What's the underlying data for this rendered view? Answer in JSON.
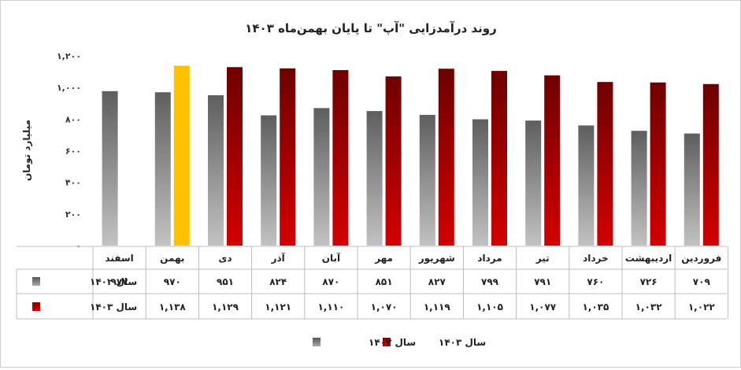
{
  "chart_data": {
    "type": "bar",
    "title": "روند درآمدزایی \"آپ\" تا پایان بهمن‌ماه ۱۴۰۳",
    "ylabel": "میلیارد تومان",
    "xlabel": "",
    "ylim": [
      0,
      1200
    ],
    "yticks": [
      0,
      200,
      400,
      600,
      800,
      1000,
      1200
    ],
    "ytick_labels": [
      "۰",
      "۲۰۰",
      "۴۰۰",
      "۶۰۰",
      "۸۰۰",
      "۱,۰۰۰",
      "۱,۲۰۰"
    ],
    "grid": false,
    "legend_position": "bottom",
    "categories": [
      "فروردین",
      "اردیبهشت",
      "خرداد",
      "تیر",
      "مرداد",
      "شهریور",
      "مهر",
      "آبان",
      "آذر",
      "دی",
      "بهمن",
      "اسفند"
    ],
    "series": [
      {
        "name": "سال ۱۴۰۲",
        "color": "#7a7a7a",
        "values": [
          709,
          726,
          760,
          791,
          799,
          827,
          851,
          870,
          824,
          951,
          970,
          977
        ],
        "labels": [
          "۷۰۹",
          "۷۲۶",
          "۷۶۰",
          "۷۹۱",
          "۷۹۹",
          "۸۲۷",
          "۸۵۱",
          "۸۷۰",
          "۸۲۴",
          "۹۵۱",
          "۹۷۰",
          "۹۷۷"
        ]
      },
      {
        "name": "سال ۱۴۰۳",
        "color": "#b00000",
        "highlight_index": 10,
        "highlight_color": "#ffc000",
        "values": [
          1022,
          1032,
          1035,
          1077,
          1105,
          1119,
          1070,
          1110,
          1121,
          1129,
          1138,
          null
        ],
        "labels": [
          "۱,۰۲۲",
          "۱,۰۳۲",
          "۱,۰۳۵",
          "۱,۰۷۷",
          "۱,۱۰۵",
          "۱,۱۱۹",
          "۱,۰۷۰",
          "۱,۱۱۰",
          "۱,۱۲۱",
          "۱,۱۲۹",
          "۱,۱۳۸",
          ""
        ]
      }
    ]
  }
}
